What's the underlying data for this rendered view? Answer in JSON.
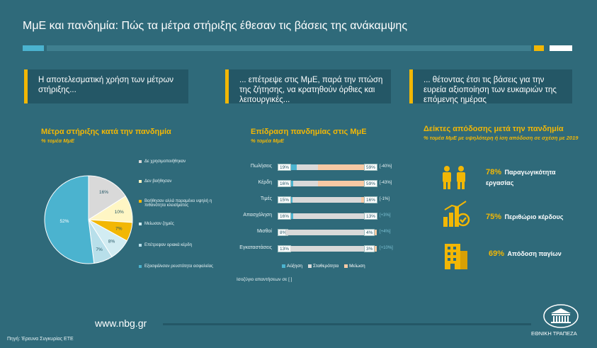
{
  "header": {
    "title": "ΜμΕ και πανδημία: Πώς τα μέτρα στήριξης έθεσαν τις βάσεις της ανάκαμψης"
  },
  "boxes": [
    {
      "text": "Η αποτελεσματική χρήση των μέτρων στήριξης..."
    },
    {
      "text": "... επέτρεψε στις ΜμΕ, παρά την πτώση της ζήτησης, να κρατηθούν όρθιες και λειτουργικές..."
    },
    {
      "text": "... θέτοντας έτσι τις βάσεις για την ευρεία αξιοποίηση των ευκαιριών της επόμενης ημέρας"
    }
  ],
  "pie": {
    "title": "Μέτρα στήριξης κατά την πανδημία",
    "subtitle": "% τομέα ΜμΕ"
  },
  "bars": {
    "title": "Επίδραση πανδημίας στις ΜμΕ",
    "subtitle": "% τομέα ΜμΕ",
    "legend": [
      "Αύξηση",
      "Σταθερότητα",
      "Μείωση"
    ],
    "note": "Ισοζύγιο απαντήσεων σε [ ]"
  },
  "kpis": {
    "title": "Δείκτες απόδοσης μετά την πανδημία",
    "subtitle": "% τομέα ΜμΕ με υψηλότερη ή ίση απόδοση σε σχέση με 2019",
    "items": [
      {
        "value": "78%",
        "label": "Παραγωγικότητα εργασίας",
        "icon": "workers-icon"
      },
      {
        "value": "75%",
        "label": "Περιθώριο κέρδους",
        "icon": "profit-icon"
      },
      {
        "value": "69%",
        "label": "Απόδοση παγίων",
        "icon": "building-icon"
      }
    ]
  },
  "footer": {
    "url": "www.nbg.gr",
    "source": "Πηγή: Έρευνα Συγκυρίας ΕΤΕ",
    "bank": "ΕΘΝΙΚΗ ΤΡΑΠΕΖΑ"
  },
  "colors": {
    "background": "#2f6a7a",
    "box": "#245766",
    "accent": "#f2b705",
    "pie_blue": "#4bb3cf",
    "pie_lightblue": "#d2ecf2",
    "pie_grey": "#d9d9d9",
    "pie_cream": "#fff6c4",
    "pie_orange": "#f2b705",
    "bar_increase": "#4bb3cf",
    "bar_stable": "#d9d9d9",
    "bar_decrease": "#f7c9a4"
  },
  "chart_data": [
    {
      "type": "pie",
      "title": "Μέτρα στήριξης κατά την πανδημία",
      "subtitle": "% τομέα ΜμΕ",
      "slices": [
        {
          "name": "Δε χρησιμοποιήθηκαν",
          "value": 16,
          "label": "16%",
          "color": "#d9d9d9"
        },
        {
          "name": "Δεν βοήθησαν",
          "value": 10,
          "label": "10%",
          "color": "#fff6c4"
        },
        {
          "name": "Βοήθησαν αλλά παραμένει υψηλή η πιθανότητα κλεισίματος",
          "value": 7,
          "label": "7%",
          "color": "#f2b705"
        },
        {
          "name": "Μείωσαν ζημιές",
          "value": 8,
          "label": "8%",
          "color": "#d2ecf2"
        },
        {
          "name": "Επέτρεψαν οριακά κέρδη",
          "value": 7,
          "label": "7%",
          "color": "#b8dfea"
        },
        {
          "name": "Εξασφάλισαν ρευστότητα ασφαλείας",
          "value": 52,
          "label": "52%",
          "color": "#4bb3cf"
        }
      ]
    },
    {
      "type": "bar",
      "title": "Επίδραση πανδημίας στις ΜμΕ",
      "subtitle": "% τομέα ΜμΕ",
      "categories": [
        "Πωλήσεις",
        "Κέρδη",
        "Τιμές",
        "Απασχόληση",
        "Μισθοί",
        "Εγκαταστάσεις"
      ],
      "series": [
        {
          "name": "Αύξηση",
          "values": [
            19,
            16,
            15,
            16,
            8,
            13
          ]
        },
        {
          "name": "Σταθερότητα",
          "values": [
            22,
            25,
            69,
            71,
            88,
            84
          ]
        },
        {
          "name": "Μείωση",
          "values": [
            59,
            59,
            16,
            13,
            4,
            3
          ]
        }
      ],
      "balances": [
        "[-40%]",
        "[-43%]",
        "[-1%]",
        "[+3%]",
        "[+4%]",
        "[+10%]"
      ]
    }
  ]
}
